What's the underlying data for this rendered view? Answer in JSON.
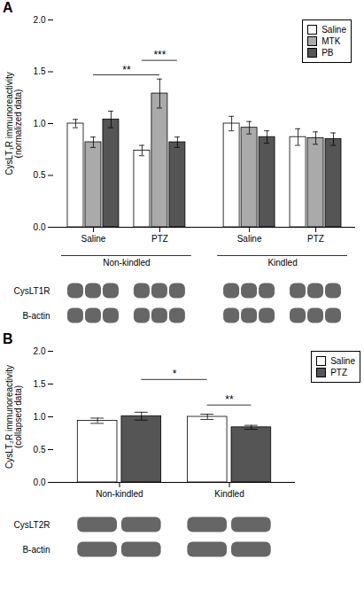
{
  "chart_data": [
    {
      "type": "bar",
      "title": "A",
      "ylabel": "CysLT₁R immunoreactivity\n(normalized data)",
      "categories": [
        "Saline",
        "PTZ",
        "Saline",
        "PTZ"
      ],
      "group_labels": [
        "Non-kindled",
        "Kindled"
      ],
      "series": [
        {
          "name": "Saline",
          "color": "#ffffff",
          "values": [
            1.0,
            0.74,
            1.0,
            0.87
          ],
          "errors": [
            0.04,
            0.05,
            0.07,
            0.08
          ]
        },
        {
          "name": "MTK",
          "color": "#aaaaaa",
          "values": [
            0.82,
            1.29,
            0.96,
            0.86
          ],
          "errors": [
            0.05,
            0.14,
            0.06,
            0.06
          ]
        },
        {
          "name": "PB",
          "color": "#555555",
          "values": [
            1.04,
            0.82,
            0.87,
            0.85
          ],
          "errors": [
            0.08,
            0.05,
            0.06,
            0.06
          ]
        }
      ],
      "ylim": [
        0.0,
        2.0
      ],
      "yticks": [
        {
          "value": 0,
          "label": "0.0"
        },
        0.5,
        {
          "value": 1,
          "label": "1.0"
        },
        1.5,
        {
          "value": 2,
          "label": "2.0"
        }
      ],
      "grid": false,
      "legend": "upper right",
      "annotations": [
        {
          "text": "**",
          "y": 1.47,
          "from": {
            "category": 0
          },
          "to": {
            "category": 1
          }
        },
        {
          "text": "***",
          "y": 1.61,
          "from": {
            "category": 1,
            "series": "Saline"
          },
          "to": {
            "category": 1,
            "series": "PB"
          }
        }
      ],
      "blot_labels": [
        "CysLT1R",
        "B-actin"
      ]
    },
    {
      "type": "bar",
      "title": "B",
      "ylabel": "CysLT₂R immunoreactivity\n(collapsed data)",
      "categories": [
        "Non-kindled",
        "Kindled"
      ],
      "series": [
        {
          "name": "Saline",
          "color": "#ffffff",
          "values": [
            0.94,
            1.0
          ],
          "errors": [
            0.04,
            0.04
          ]
        },
        {
          "name": "PTZ",
          "color": "#555555",
          "values": [
            1.01,
            0.84
          ],
          "errors": [
            0.06,
            0.03
          ]
        }
      ],
      "ylim": [
        0.0,
        2.0
      ],
      "yticks": [
        {
          "value": 0,
          "label": "0.0"
        },
        0.5,
        {
          "value": 1,
          "label": "1.0"
        },
        1.5,
        {
          "value": 2,
          "label": "2.0"
        }
      ],
      "grid": false,
      "legend": "right",
      "annotations": [
        {
          "text": "*",
          "y": 1.57,
          "from": {
            "category": 0,
            "series": "PTZ"
          },
          "to": {
            "category": 1,
            "series": "Saline"
          }
        },
        {
          "text": "**",
          "y": 1.18,
          "from": {
            "category": 1,
            "series": "Saline"
          },
          "to": {
            "category": 1,
            "series": "PTZ"
          }
        }
      ],
      "blot_labels": [
        "CysLT2R",
        "B-actin"
      ]
    }
  ]
}
